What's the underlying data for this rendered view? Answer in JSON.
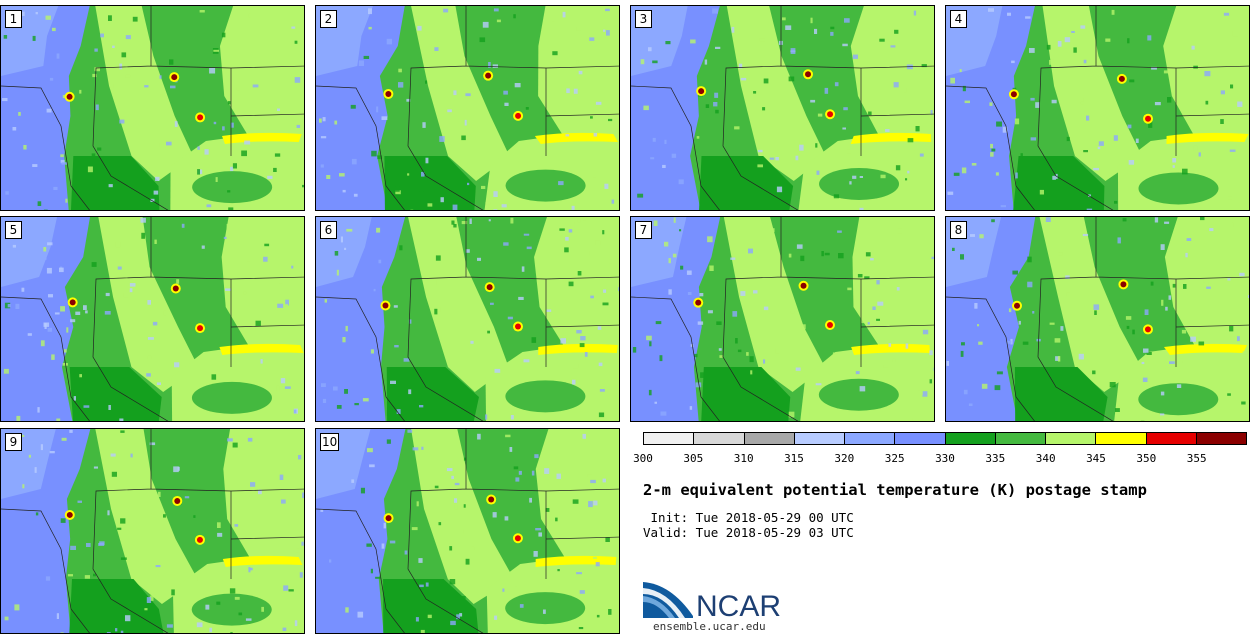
{
  "panels": [
    {
      "label": "1"
    },
    {
      "label": "2"
    },
    {
      "label": "3"
    },
    {
      "label": "4"
    },
    {
      "label": "5"
    },
    {
      "label": "6"
    },
    {
      "label": "7"
    },
    {
      "label": "8"
    },
    {
      "label": "9"
    },
    {
      "label": "10"
    }
  ],
  "colorbar": {
    "colors": [
      "#f0f0f0",
      "#d8d8d8",
      "#a8a8a8",
      "#b8ccff",
      "#8ca8ff",
      "#7890ff",
      "#14a01e",
      "#44b93f",
      "#b6f56b",
      "#ffff00",
      "#e60000",
      "#8b0000"
    ],
    "ticks": [
      "300",
      "305",
      "310",
      "315",
      "320",
      "325",
      "330",
      "335",
      "340",
      "345",
      "350",
      "355"
    ]
  },
  "title": "2-m equivalent potential temperature (K) postage stamp",
  "init": " Init: Tue 2018-05-29 00 UTC",
  "valid": "Valid: Tue 2018-05-29 03 UTC",
  "logo": {
    "text": "NCAR",
    "url": "ensemble.ucar.edu"
  }
}
